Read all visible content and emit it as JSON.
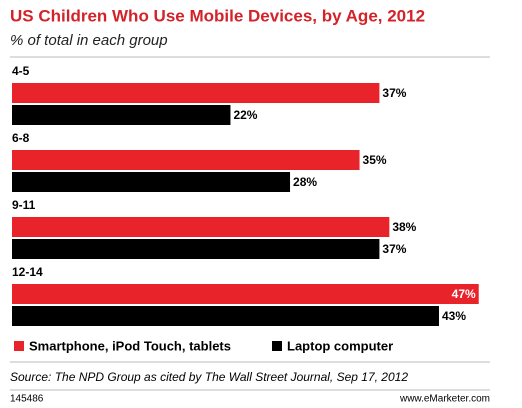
{
  "chart_data": {
    "type": "bar",
    "orientation": "horizontal",
    "title": "US Children Who Use Mobile Devices, by Age, 2012",
    "subtitle": "% of total in each group",
    "categories": [
      "4-5",
      "6-8",
      "9-11",
      "12-14"
    ],
    "series": [
      {
        "name": "Smartphone, iPod Touch, tablets",
        "color": "#e8232a",
        "values": [
          37,
          35,
          38,
          47
        ],
        "value_labels": [
          "37%",
          "35%",
          "38%",
          "47%"
        ]
      },
      {
        "name": "Laptop computer",
        "color": "#000000",
        "values": [
          22,
          28,
          37,
          43
        ],
        "value_labels": [
          "22%",
          "28%",
          "37%",
          "43%"
        ]
      }
    ],
    "source": "Source: The NPD Group as cited by The Wall Street Journal, Sep 17, 2012",
    "chart_id": "145486",
    "website": "www.eMarketer.com"
  }
}
